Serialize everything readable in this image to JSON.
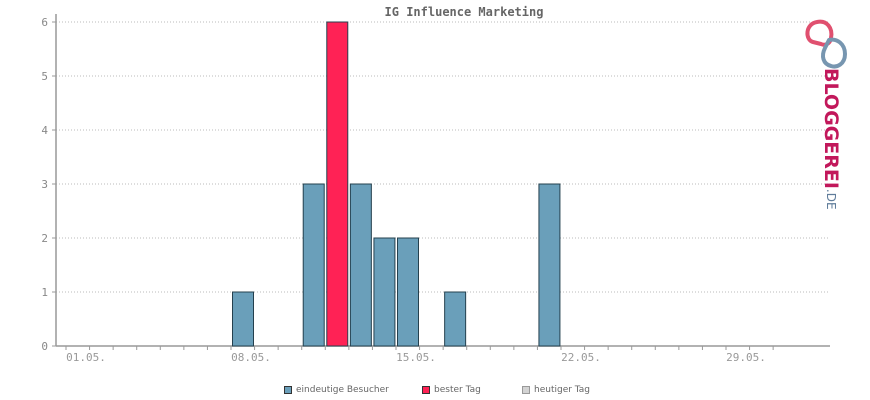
{
  "chart_data": {
    "type": "bar",
    "title": "IG Influence Marketing",
    "x_tick_labels": [
      "01.05.",
      "08.05.",
      "15.05.",
      "22.05.",
      "29.05."
    ],
    "x_tick_day_index": [
      1,
      8,
      15,
      22,
      29
    ],
    "days_in_range": 31,
    "series": [
      {
        "name": "eindeutige Besucher",
        "color": "#6a9fba",
        "points": [
          {
            "day": 8,
            "value": 1
          },
          {
            "day": 11,
            "value": 3
          },
          {
            "day": 13,
            "value": 3
          },
          {
            "day": 14,
            "value": 2
          },
          {
            "day": 15,
            "value": 2
          },
          {
            "day": 17,
            "value": 1
          },
          {
            "day": 21,
            "value": 3
          }
        ]
      },
      {
        "name": "bester Tag",
        "color": "#ff2255",
        "points": [
          {
            "day": 12,
            "value": 6
          }
        ]
      }
    ],
    "yticks": [
      0,
      1,
      2,
      3,
      4,
      5,
      6
    ],
    "ylim": [
      0,
      6
    ],
    "grid": true
  },
  "legend": [
    {
      "label": "eindeutige Besucher",
      "color": "#6a9fba"
    },
    {
      "label": "bester Tag",
      "color": "#ff2255"
    },
    {
      "label": "heutiger Tag",
      "color": "#d3d3d3"
    }
  ],
  "logo": {
    "main": "BLOGGEREI",
    "suffix": ".DE"
  }
}
